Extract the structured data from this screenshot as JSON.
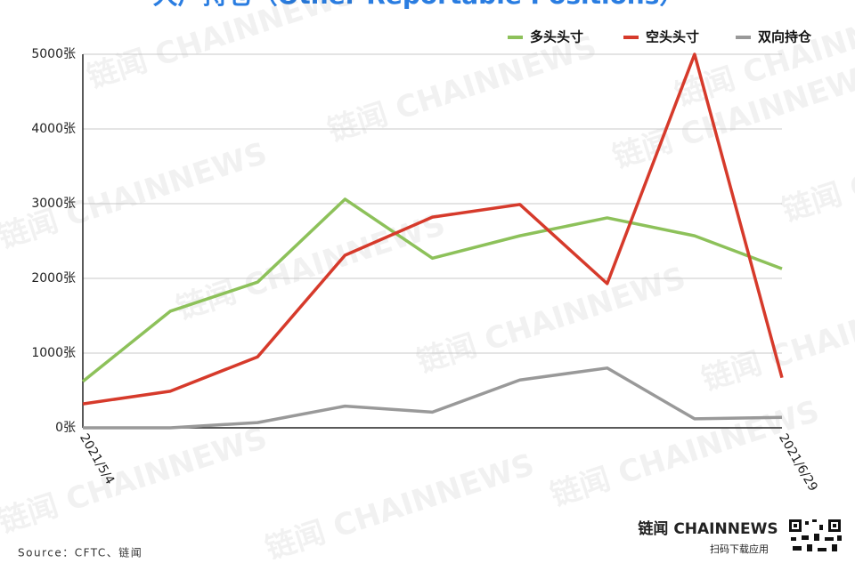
{
  "chart_data": {
    "type": "line",
    "title": "大户持仓（Other Reportable Positions）",
    "categories": [
      "2021/5/4",
      null,
      null,
      null,
      null,
      null,
      null,
      null,
      "2021/6/29"
    ],
    "series": [
      {
        "name": "多头头寸",
        "color": "#8dc15a",
        "values": [
          620,
          1560,
          1950,
          3060,
          2270,
          2570,
          2810,
          2570,
          2130
        ]
      },
      {
        "name": "空头头寸",
        "color": "#d63a2b",
        "values": [
          320,
          490,
          950,
          2310,
          2820,
          2990,
          1930,
          5000,
          670
        ]
      },
      {
        "name": "双向持仓",
        "color": "#999999",
        "values": [
          0,
          0,
          70,
          290,
          210,
          640,
          800,
          120,
          140
        ]
      }
    ],
    "ylim": [
      0,
      5000
    ],
    "yticks": [
      {
        "value": 0,
        "label": "0张"
      },
      {
        "value": 1000,
        "label": "1000张"
      },
      {
        "value": 2000,
        "label": "2000张"
      },
      {
        "value": 3000,
        "label": "3000张"
      },
      {
        "value": 4000,
        "label": "4000张"
      },
      {
        "value": 5000,
        "label": "5000张"
      }
    ],
    "grid": true,
    "legend": "top-right",
    "source": "Source：CFTC、链闻",
    "logo": "链闻 CHAINNEWS",
    "logo_caption": "扫码下载应用",
    "watermark": "链闻 CHAINNEWS"
  }
}
